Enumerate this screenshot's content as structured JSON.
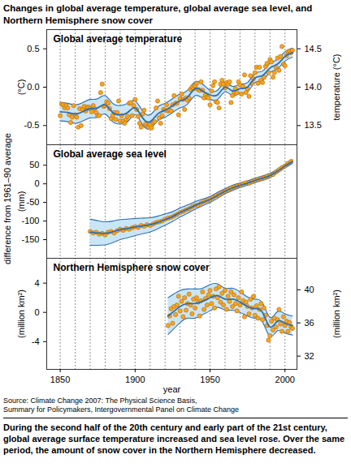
{
  "title": "Changes in global average temperature, global average sea level, and Northern Hemisphere snow cover",
  "ylabel": "difference from 1961–90 average",
  "source": [
    "Source: Climate Change 2007: The Physical Science Basis,",
    "Summary for Policymakers, Intergovernmental Panel on Climate Change"
  ],
  "caption": "During the second half of the 20th century and early part of the 21st century, global average surface temperature increased and sea level rose. Over the same period, the amount of snow cover in the Northern Hemisphere decreased.",
  "chart_data": [
    {
      "type": "line",
      "title": "Global average temperature",
      "ylabel": "(°C)",
      "y2label": "temperature (°C)",
      "xlim": [
        1841,
        2008
      ],
      "ylim": [
        -0.75,
        0.75
      ],
      "yticks": [
        0.5,
        {
          "value": 0,
          "label": "0.0"
        },
        -0.5
      ],
      "y2lim": [
        13.25,
        14.75
      ],
      "y2ticks": [
        14.5,
        {
          "value": 14,
          "label": "14.0"
        },
        13.5
      ],
      "grid": true,
      "tick_labels": "y",
      "series": [
        {
          "type": "scatter",
          "marker": "circle",
          "color": "#f7a521",
          "x": [
            1850,
            1851,
            1852,
            1853,
            1854,
            1855,
            1856,
            1857,
            1858,
            1859,
            1860,
            1861,
            1862,
            1863,
            1864,
            1865,
            1866,
            1867,
            1868,
            1869,
            1870,
            1871,
            1872,
            1873,
            1874,
            1875,
            1876,
            1877,
            1878,
            1879,
            1880,
            1881,
            1882,
            1883,
            1884,
            1885,
            1886,
            1887,
            1888,
            1889,
            1890,
            1891,
            1892,
            1893,
            1894,
            1895,
            1896,
            1897,
            1898,
            1899,
            1900,
            1901,
            1902,
            1903,
            1904,
            1905,
            1906,
            1907,
            1908,
            1909,
            1910,
            1911,
            1912,
            1913,
            1914,
            1915,
            1916,
            1917,
            1918,
            1919,
            1920,
            1921,
            1922,
            1923,
            1924,
            1925,
            1926,
            1927,
            1928,
            1929,
            1930,
            1931,
            1932,
            1933,
            1934,
            1935,
            1936,
            1937,
            1938,
            1939,
            1940,
            1941,
            1942,
            1943,
            1944,
            1945,
            1946,
            1947,
            1948,
            1949,
            1950,
            1951,
            1952,
            1953,
            1954,
            1955,
            1956,
            1957,
            1958,
            1959,
            1960,
            1961,
            1962,
            1963,
            1964,
            1965,
            1966,
            1967,
            1968,
            1969,
            1970,
            1971,
            1972,
            1973,
            1974,
            1975,
            1976,
            1977,
            1978,
            1979,
            1980,
            1981,
            1982,
            1983,
            1984,
            1985,
            1986,
            1987,
            1988,
            1989,
            1990,
            1991,
            1992,
            1993,
            1994,
            1995,
            1996,
            1997,
            1998,
            1999,
            2000,
            2001,
            2002,
            2003,
            2004,
            2005
          ],
          "values": [
            -0.37,
            -0.22,
            -0.23,
            -0.27,
            -0.24,
            -0.27,
            -0.36,
            -0.46,
            -0.39,
            -0.24,
            -0.36,
            -0.39,
            -0.52,
            -0.28,
            -0.5,
            -0.29,
            -0.25,
            -0.31,
            -0.26,
            -0.26,
            -0.28,
            -0.32,
            -0.24,
            -0.28,
            -0.33,
            -0.37,
            -0.37,
            -0.07,
            0.04,
            -0.25,
            -0.24,
            -0.19,
            -0.21,
            -0.28,
            -0.41,
            -0.37,
            -0.33,
            -0.42,
            -0.33,
            -0.18,
            -0.44,
            -0.37,
            -0.44,
            -0.47,
            -0.42,
            -0.38,
            -0.21,
            -0.2,
            -0.37,
            -0.24,
            -0.16,
            -0.29,
            -0.38,
            -0.47,
            -0.52,
            -0.35,
            -0.3,
            -0.48,
            -0.51,
            -0.52,
            -0.49,
            -0.53,
            -0.46,
            -0.45,
            -0.27,
            -0.18,
            -0.4,
            -0.47,
            -0.37,
            -0.29,
            -0.3,
            -0.23,
            -0.31,
            -0.3,
            -0.31,
            -0.23,
            -0.11,
            -0.21,
            -0.21,
            -0.36,
            -0.15,
            -0.09,
            -0.16,
            -0.29,
            -0.14,
            -0.17,
            -0.14,
            -0.03,
            0,
            -0.02,
            0.02,
            0.05,
            -0.03,
            -0.04,
            0.07,
            -0.04,
            -0.14,
            -0.1,
            -0.13,
            -0.14,
            -0.23,
            -0.05,
            0.02,
            0.07,
            -0.19,
            -0.2,
            -0.27,
            0.04,
            0.09,
            0.04,
            -0.01,
            0.06,
            0.04,
            0.07,
            -0.2,
            -0.11,
            -0.06,
            -0.02,
            -0.07,
            0.07,
            0.03,
            -0.09,
            0.01,
            0.16,
            -0.07,
            -0.02,
            -0.12,
            0.15,
            0.05,
            0.11,
            0.19,
            0.26,
            0.05,
            0.26,
            0.09,
            0.06,
            0.13,
            0.27,
            0.31,
            0.19,
            0.36,
            0.33,
            0.13,
            0.19,
            0.26,
            0.38,
            0.22,
            0.4,
            0.53,
            0.3,
            0.28,
            0.41,
            0.46,
            0.47,
            0.45,
            0.48
          ]
        },
        {
          "type": "line",
          "line_style": "solid",
          "color": "#2f6db5",
          "x": [
            1850,
            1855,
            1860,
            1865,
            1870,
            1875,
            1880,
            1885,
            1890,
            1895,
            1900,
            1905,
            1910,
            1915,
            1920,
            1925,
            1930,
            1935,
            1940,
            1945,
            1950,
            1955,
            1960,
            1965,
            1970,
            1975,
            1980,
            1985,
            1990,
            1995,
            2000,
            2005
          ],
          "values": [
            -0.32,
            -0.33,
            -0.35,
            -0.32,
            -0.28,
            -0.27,
            -0.23,
            -0.33,
            -0.36,
            -0.33,
            -0.27,
            -0.4,
            -0.45,
            -0.35,
            -0.3,
            -0.24,
            -0.18,
            -0.13,
            -0.02,
            -0.05,
            -0.1,
            -0.1,
            0,
            -0.05,
            -0.02,
            0,
            0.12,
            0.15,
            0.25,
            0.3,
            0.4,
            0.45
          ],
          "lower": [
            -0.44,
            -0.45,
            -0.47,
            -0.44,
            -0.4,
            -0.39,
            -0.35,
            -0.45,
            -0.48,
            -0.45,
            -0.36,
            -0.49,
            -0.54,
            -0.44,
            -0.39,
            -0.33,
            -0.27,
            -0.22,
            -0.11,
            -0.14,
            -0.16,
            -0.16,
            -0.06,
            -0.11,
            -0.08,
            -0.06,
            0.06,
            0.09,
            0.19,
            0.24,
            0.34,
            0.39
          ],
          "upper": [
            -0.2,
            -0.21,
            -0.23,
            -0.2,
            -0.16,
            -0.15,
            -0.11,
            -0.21,
            -0.24,
            -0.21,
            -0.18,
            -0.31,
            -0.36,
            -0.26,
            -0.21,
            -0.15,
            -0.09,
            -0.04,
            0.07,
            0.04,
            -0.04,
            -0.04,
            0.06,
            0.01,
            0.04,
            0.06,
            0.18,
            0.21,
            0.31,
            0.36,
            0.46,
            0.51
          ]
        }
      ]
    },
    {
      "type": "line",
      "title": "Global average sea level",
      "ylabel": "(mm)",
      "xlim": [
        1841,
        2008
      ],
      "ylim": [
        -200,
        105
      ],
      "yticks": [
        50,
        0,
        -50,
        -100,
        -150
      ],
      "grid": true,
      "tick_labels": "y",
      "series": [
        {
          "type": "scatter",
          "marker": "circle",
          "color": "#f7a521",
          "x": [
            1870,
            1872,
            1874,
            1876,
            1878,
            1880,
            1882,
            1884,
            1886,
            1888,
            1890,
            1892,
            1894,
            1896,
            1898,
            1900,
            1902,
            1904,
            1906,
            1908,
            1910,
            1912,
            1914,
            1916,
            1918,
            1920,
            1922,
            1924,
            1926,
            1928,
            1930,
            1932,
            1934,
            1936,
            1938,
            1940,
            1942,
            1944,
            1946,
            1948,
            1950,
            1952,
            1954,
            1956,
            1958,
            1960,
            1962,
            1964,
            1966,
            1968,
            1970,
            1972,
            1974,
            1976,
            1978,
            1980,
            1982,
            1984,
            1986,
            1988,
            1990,
            1992,
            1994,
            1996,
            1998,
            2000,
            2002,
            2004
          ],
          "values": [
            -128,
            -132,
            -130,
            -135,
            -133,
            -137,
            -130,
            -128,
            -132,
            -126,
            -122,
            -125,
            -120,
            -122,
            -118,
            -115,
            -117,
            -112,
            -114,
            -110,
            -112,
            -108,
            -104,
            -102,
            -100,
            -95,
            -92,
            -90,
            -86,
            -82,
            -77,
            -74,
            -70,
            -67,
            -62,
            -58,
            -57,
            -52,
            -48,
            -45,
            -42,
            -37,
            -32,
            -30,
            -24,
            -20,
            -16,
            -12,
            -9,
            -6,
            -4,
            0,
            3,
            2,
            6,
            9,
            12,
            14,
            16,
            20,
            22,
            25,
            32,
            38,
            44,
            48,
            55,
            60
          ]
        },
        {
          "type": "line",
          "line_style": "solid",
          "color": "#2f6db5",
          "x": [
            1870,
            1875,
            1880,
            1885,
            1890,
            1895,
            1900,
            1905,
            1910,
            1915,
            1920,
            1925,
            1930,
            1935,
            1940,
            1945,
            1950,
            1955,
            1960,
            1965,
            1970,
            1975,
            1980,
            1985,
            1990,
            1995,
            2000,
            2005
          ],
          "values": [
            -130,
            -132,
            -133,
            -129,
            -123,
            -120,
            -116,
            -113,
            -110,
            -104,
            -96,
            -88,
            -77,
            -68,
            -58,
            -50,
            -42,
            -31,
            -20,
            -11,
            -4,
            2,
            9,
            15,
            22,
            34,
            48,
            60
          ],
          "lower": [
            -165,
            -165,
            -164,
            -158,
            -150,
            -145,
            -139,
            -134,
            -129,
            -121,
            -111,
            -101,
            -89,
            -79,
            -68,
            -59,
            -50,
            -39,
            -27,
            -18,
            -10,
            -4,
            3,
            9,
            16,
            29,
            43,
            55
          ],
          "upper": [
            -95,
            -99,
            -102,
            -100,
            -96,
            -95,
            -93,
            -92,
            -91,
            -87,
            -81,
            -75,
            -65,
            -57,
            -48,
            -41,
            -34,
            -23,
            -13,
            -4,
            2,
            8,
            15,
            21,
            28,
            39,
            53,
            65
          ]
        }
      ]
    },
    {
      "type": "line",
      "title": "Northern Hemisphere snow cover",
      "ylabel": "(million km²)",
      "y2label": "(million km²)",
      "xlabel": "year",
      "xlim": [
        1841,
        2008
      ],
      "xticks": [
        1850,
        1900,
        1950,
        2000
      ],
      "ylim": [
        -7.8,
        7.4
      ],
      "yticks": [
        4,
        0,
        -4
      ],
      "y2lim": [
        30.4,
        43.8
      ],
      "y2ticks": [
        40,
        36,
        32
      ],
      "grid": true,
      "series": [
        {
          "type": "scatter",
          "marker": "circle",
          "color": "#f7a521",
          "x": [
            1922,
            1923,
            1924,
            1925,
            1926,
            1927,
            1928,
            1929,
            1930,
            1931,
            1932,
            1933,
            1934,
            1935,
            1936,
            1937,
            1938,
            1939,
            1940,
            1941,
            1942,
            1943,
            1944,
            1945,
            1946,
            1947,
            1948,
            1949,
            1950,
            1951,
            1952,
            1953,
            1954,
            1955,
            1956,
            1957,
            1958,
            1959,
            1960,
            1961,
            1962,
            1963,
            1964,
            1965,
            1966,
            1967,
            1968,
            1969,
            1970,
            1971,
            1972,
            1973,
            1974,
            1975,
            1976,
            1977,
            1978,
            1979,
            1980,
            1981,
            1982,
            1983,
            1984,
            1985,
            1986,
            1987,
            1988,
            1989,
            1990,
            1991,
            1992,
            1993,
            1994,
            1995,
            1996,
            1997,
            1998,
            1999,
            2000,
            2001,
            2002,
            2003,
            2004,
            2005
          ],
          "values": [
            -1.8,
            -0.5,
            0.5,
            -1.5,
            0.8,
            -0.3,
            1.0,
            2.2,
            0.2,
            1.5,
            -0.6,
            2.0,
            0.3,
            1.2,
            2.5,
            1.0,
            -0.2,
            1.8,
            0.6,
            2.0,
            1.4,
            -0.5,
            1.6,
            2.8,
            0.4,
            1.9,
            1.0,
            2.4,
            3.0,
            1.2,
            2.2,
            0.6,
            3.2,
            2.0,
            3.5,
            1.4,
            2.6,
            1.0,
            3.0,
            0.4,
            2.2,
            1.5,
            2.8,
            0.8,
            2.4,
            1.2,
            0.2,
            2.0,
            1.0,
            2.8,
            1.6,
            -0.6,
            1.4,
            0.8,
            -0.2,
            1.8,
            0.6,
            2.2,
            -0.4,
            0.9,
            -0.8,
            0.4,
            1.2,
            -1.0,
            0.6,
            -0.4,
            -1.8,
            -3.8,
            -3.2,
            -1.2,
            -2.4,
            -0.8,
            -2.0,
            -1.0,
            0.4,
            -1.6,
            -2.6,
            -0.6,
            -1.8,
            -1.2,
            -2.6,
            -1.4,
            -2.0,
            -2.2
          ]
        },
        {
          "type": "line",
          "line_style": "solid",
          "color": "#2f6db5",
          "x": [
            1922,
            1925,
            1930,
            1935,
            1940,
            1945,
            1950,
            1955,
            1960,
            1965,
            1970,
            1975,
            1980,
            1985,
            1990,
            1995,
            2000,
            2005
          ],
          "values": [
            -0.5,
            0,
            0.8,
            1.2,
            1.2,
            1.5,
            2.0,
            2.3,
            1.8,
            1.8,
            1.4,
            0.8,
            0.5,
            0,
            -2.0,
            -1.2,
            -1.5,
            -1.8
          ],
          "lower": [
            -3.0,
            -2.4,
            -1.4,
            -0.8,
            -0.8,
            -0.3,
            0.2,
            0.7,
            0.3,
            0.3,
            0,
            -0.5,
            -0.8,
            -1.3,
            -3.3,
            -2.5,
            -2.8,
            -3.1
          ],
          "upper": [
            2.0,
            2.4,
            3.0,
            3.2,
            3.2,
            3.3,
            3.8,
            3.9,
            3.3,
            3.3,
            2.8,
            2.1,
            1.8,
            1.3,
            -0.7,
            0.1,
            -0.2,
            -0.5
          ]
        }
      ]
    }
  ]
}
